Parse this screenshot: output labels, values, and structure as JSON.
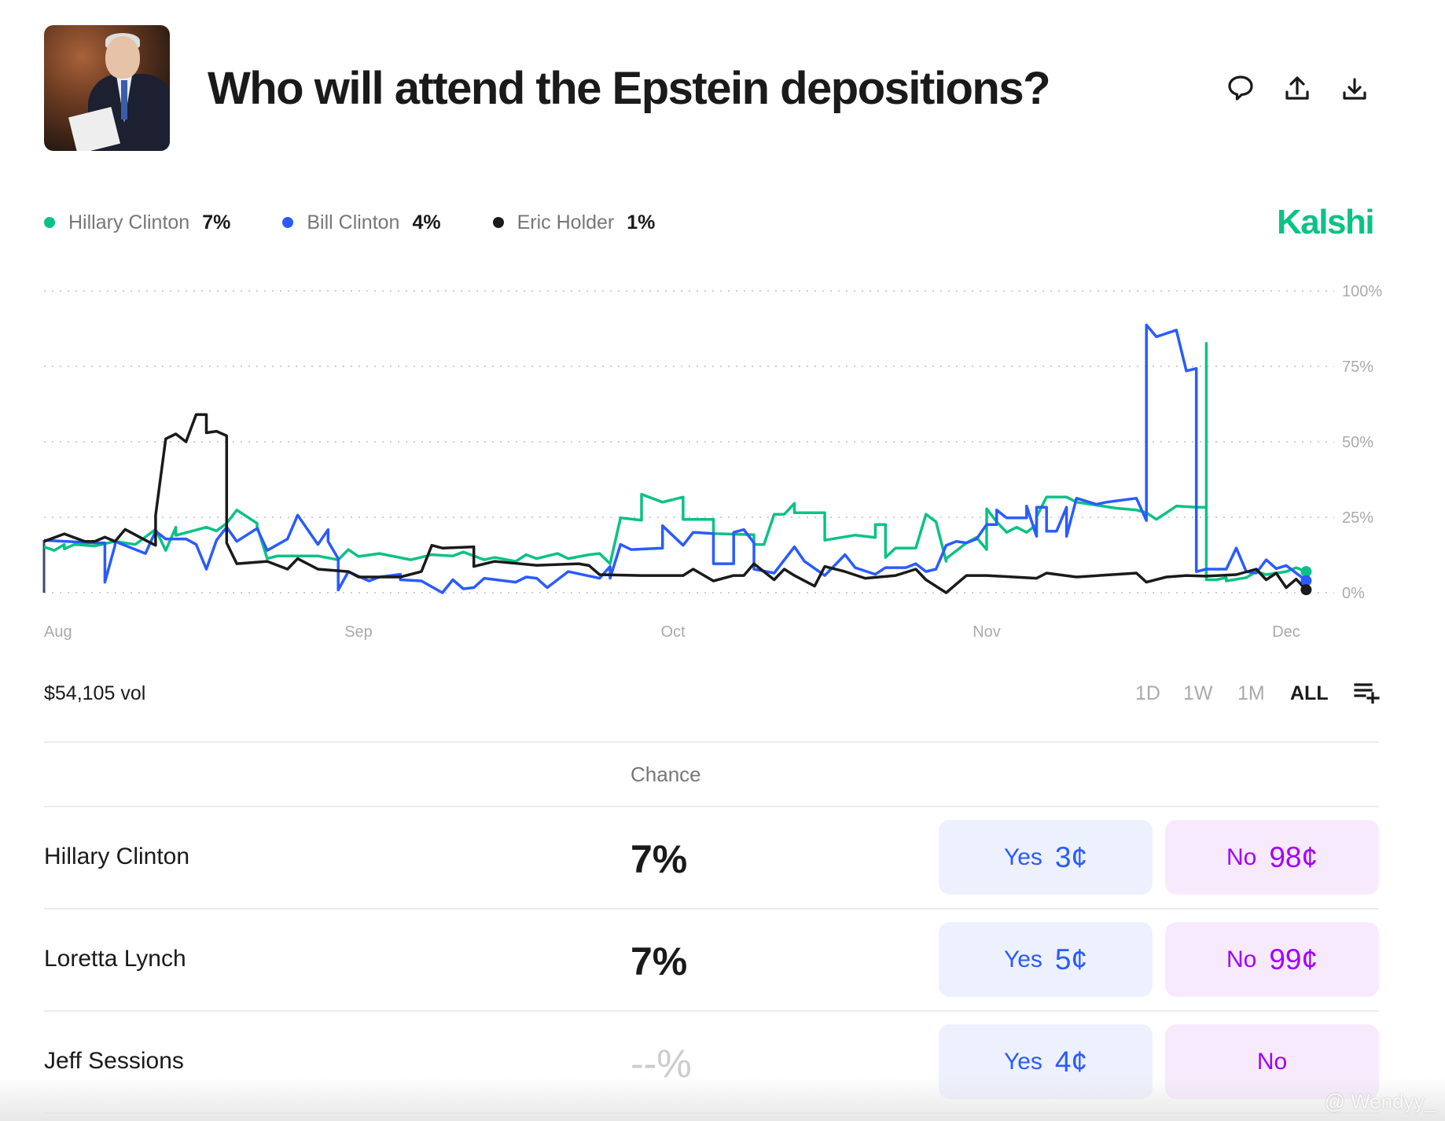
{
  "header": {
    "title": "Who will attend the Epstein depositions?",
    "icons": [
      "comment-icon",
      "share-icon",
      "download-icon"
    ]
  },
  "brand": "Kalshi",
  "legend": [
    {
      "name": "Hillary Clinton",
      "value": "7%",
      "color": "#0ac285"
    },
    {
      "name": "Bill Clinton",
      "value": "4%",
      "color": "#2a5bff"
    },
    {
      "name": "Eric Holder",
      "value": "1%",
      "color": "#1a1a1a"
    }
  ],
  "chart_data": {
    "type": "line",
    "xlabel": "",
    "ylabel": "",
    "x_ticks": [
      "Aug",
      "Sep",
      "Oct",
      "Nov",
      "Dec"
    ],
    "y_ticks": [
      "100%",
      "75%",
      "50%",
      "25%",
      "0%"
    ],
    "ylim": [
      0,
      100
    ],
    "grid": true,
    "legend_position": "top-left",
    "series": [
      {
        "name": "Hillary Clinton",
        "color": "#0ac285",
        "points": [
          [
            "Aug 1",
            15.2
          ],
          [
            "Aug 2",
            14
          ],
          [
            "Aug 3",
            16
          ],
          [
            "Aug 3",
            14.5
          ],
          [
            "Aug 4",
            16
          ],
          [
            "Aug 6",
            15.5
          ],
          [
            "Aug 8",
            17
          ],
          [
            "Aug 10",
            16
          ],
          [
            "Aug 12",
            21
          ],
          [
            "Aug 13",
            14
          ],
          [
            "Aug 14",
            21.7
          ],
          [
            "Aug 14",
            19
          ],
          [
            "Aug 17",
            21.7
          ],
          [
            "Aug 18",
            20.5
          ],
          [
            "Aug 19",
            23
          ],
          [
            "Aug 20",
            27.4
          ],
          [
            "Aug 22",
            23
          ],
          [
            "Aug 22",
            22
          ],
          [
            "Aug 23",
            11.3
          ],
          [
            "Aug 24",
            12.2
          ],
          [
            "Aug 28",
            12.2
          ],
          [
            "Aug 30",
            10.9
          ],
          [
            "Aug 31",
            14.3
          ],
          [
            "Sep 1",
            12
          ],
          [
            "Sep 3",
            13
          ],
          [
            "Sep 6",
            10.9
          ],
          [
            "Sep 8",
            12.6
          ],
          [
            "Sep 10",
            12.2
          ],
          [
            "Sep 11",
            13.5
          ],
          [
            "Sep 13",
            10.9
          ],
          [
            "Sep 14",
            11.7
          ],
          [
            "Sep 16",
            10.4
          ],
          [
            "Sep 17",
            12.6
          ],
          [
            "Sep 18",
            11.3
          ],
          [
            "Sep 20",
            13
          ],
          [
            "Sep 21",
            11.3
          ],
          [
            "Sep 23",
            12.6
          ],
          [
            "Sep 24",
            13
          ],
          [
            "Sep 25",
            9.6
          ],
          [
            "Sep 26",
            24.8
          ],
          [
            "Sep 28",
            24
          ],
          [
            "Sep 28",
            32.6
          ],
          [
            "Sep 30",
            30
          ],
          [
            "Oct 2",
            31.7
          ],
          [
            "Oct 2",
            24.3
          ],
          [
            "Oct 5",
            24.3
          ],
          [
            "Oct 5",
            19.6
          ],
          [
            "Oct 9",
            19.2
          ],
          [
            "Oct 9",
            16
          ],
          [
            "Oct 10",
            16
          ],
          [
            "Oct 11",
            26
          ],
          [
            "Oct 12",
            26
          ],
          [
            "Oct 13",
            29.6
          ],
          [
            "Oct 13",
            26.5
          ],
          [
            "Oct 16",
            26.5
          ],
          [
            "Oct 16",
            17.4
          ],
          [
            "Oct 19",
            19.1
          ],
          [
            "Oct 21",
            18.3
          ],
          [
            "Oct 21",
            22.6
          ],
          [
            "Oct 22",
            22.6
          ],
          [
            "Oct 22",
            11.7
          ],
          [
            "Oct 23",
            14.8
          ],
          [
            "Oct 25",
            14.8
          ],
          [
            "Oct 26",
            26
          ],
          [
            "Oct 27",
            23.5
          ],
          [
            "Oct 28",
            10.4
          ],
          [
            "Oct 28",
            11.3
          ],
          [
            "Oct 30",
            16.5
          ],
          [
            "Oct 31",
            18.3
          ],
          [
            "Nov 1",
            14.3
          ],
          [
            "Nov 1",
            27.8
          ],
          [
            "Nov 2",
            23.5
          ],
          [
            "Nov 3",
            20
          ],
          [
            "Nov 4",
            21.7
          ],
          [
            "Nov 5",
            20
          ],
          [
            "Nov 6",
            22.6
          ],
          [
            "Nov 6",
            25.2
          ],
          [
            "Nov 7",
            31.7
          ],
          [
            "Nov 9",
            31.7
          ],
          [
            "Nov 10",
            30
          ],
          [
            "Nov 12",
            29
          ],
          [
            "Nov 14",
            28
          ],
          [
            "Nov 16",
            27.4
          ],
          [
            "Nov 17",
            26.5
          ],
          [
            "Nov 18",
            24.3
          ],
          [
            "Nov 20",
            28.7
          ],
          [
            "Nov 22",
            28.3
          ],
          [
            "Nov 23",
            28.3
          ],
          [
            "Nov 23",
            82.6
          ],
          [
            "Nov 23",
            4.3
          ],
          [
            "Nov 24",
            4.3
          ],
          [
            "Nov 25",
            5
          ],
          [
            "Nov 25",
            3.9
          ],
          [
            "Nov 27",
            5
          ],
          [
            "Nov 28",
            7
          ],
          [
            "Nov 29",
            6
          ],
          [
            "Dec 1",
            7
          ],
          [
            "Dec 2",
            8.3
          ],
          [
            "Dec 3",
            7
          ]
        ]
      },
      {
        "name": "Bill Clinton",
        "color": "#2a5bff",
        "points": [
          [
            "Aug 1",
            17.4
          ],
          [
            "Aug 6",
            16.5
          ],
          [
            "Aug 7",
            16.5
          ],
          [
            "Aug 7",
            3.5
          ],
          [
            "Aug 8",
            15.7
          ],
          [
            "Aug 8",
            17
          ],
          [
            "Aug 11",
            13
          ],
          [
            "Aug 12",
            20.4
          ],
          [
            "Aug 13",
            17.8
          ],
          [
            "Aug 15",
            17.8
          ],
          [
            "Aug 16",
            16
          ],
          [
            "Aug 17",
            7.8
          ],
          [
            "Aug 18",
            17.4
          ],
          [
            "Aug 19",
            21.7
          ],
          [
            "Aug 20",
            17
          ],
          [
            "Aug 22",
            21.3
          ],
          [
            "Aug 23",
            14
          ],
          [
            "Aug 25",
            17.8
          ],
          [
            "Aug 26",
            25.7
          ],
          [
            "Aug 28",
            16
          ],
          [
            "Aug 29",
            20.9
          ],
          [
            "Aug 29",
            17
          ],
          [
            "Aug 30",
            11.3
          ],
          [
            "Aug 30",
            0.9
          ],
          [
            "Aug 31",
            7
          ],
          [
            "Sep 2",
            3.9
          ],
          [
            "Sep 3",
            5.2
          ],
          [
            "Sep 5",
            6.1
          ],
          [
            "Sep 5",
            4.3
          ],
          [
            "Sep 7",
            3.9
          ],
          [
            "Sep 9",
            0
          ],
          [
            "Sep 10",
            4.3
          ],
          [
            "Sep 11",
            1.3
          ],
          [
            "Sep 12",
            1.7
          ],
          [
            "Sep 13",
            4.8
          ],
          [
            "Sep 16",
            3.5
          ],
          [
            "Sep 17",
            5.2
          ],
          [
            "Sep 18",
            4.8
          ],
          [
            "Sep 19",
            1.7
          ],
          [
            "Sep 21",
            7
          ],
          [
            "Sep 24",
            4.8
          ],
          [
            "Sep 25",
            8.7
          ],
          [
            "Sep 25",
            4.8
          ],
          [
            "Sep 26",
            16
          ],
          [
            "Sep 27",
            14.3
          ],
          [
            "Sep 30",
            14.8
          ],
          [
            "Sep 30",
            20.4
          ],
          [
            "Sep 30",
            22.2
          ],
          [
            "Oct 2",
            15.7
          ],
          [
            "Oct 3",
            20
          ],
          [
            "Oct 5",
            19.6
          ],
          [
            "Oct 5",
            9.6
          ],
          [
            "Oct 7",
            9.6
          ],
          [
            "Oct 7",
            20
          ],
          [
            "Oct 8",
            20.9
          ],
          [
            "Oct 9",
            16.5
          ],
          [
            "Oct 9",
            7.8
          ],
          [
            "Oct 11",
            6.5
          ],
          [
            "Oct 13",
            15.2
          ],
          [
            "Oct 14",
            10.4
          ],
          [
            "Oct 16",
            5.7
          ],
          [
            "Oct 18",
            12.6
          ],
          [
            "Oct 19",
            8.3
          ],
          [
            "Oct 21",
            6.1
          ],
          [
            "Oct 22",
            8.3
          ],
          [
            "Oct 24",
            8.3
          ],
          [
            "Oct 25",
            9.6
          ],
          [
            "Oct 26",
            7
          ],
          [
            "Oct 27",
            7.8
          ],
          [
            "Oct 28",
            15.7
          ],
          [
            "Oct 29",
            17
          ],
          [
            "Oct 30",
            16.5
          ],
          [
            "Oct 31",
            17.8
          ],
          [
            "Nov 1",
            22.6
          ],
          [
            "Nov 2",
            22.6
          ],
          [
            "Nov 2",
            27.4
          ],
          [
            "Nov 3",
            24.8
          ],
          [
            "Nov 5",
            24.8
          ],
          [
            "Nov 5",
            28.7
          ],
          [
            "Nov 6",
            18.7
          ],
          [
            "Nov 6",
            28.3
          ],
          [
            "Nov 7",
            28.3
          ],
          [
            "Nov 7",
            20.4
          ],
          [
            "Nov 8",
            20.4
          ],
          [
            "Nov 9",
            28.3
          ],
          [
            "Nov 9",
            18.7
          ],
          [
            "Nov 10",
            31.3
          ],
          [
            "Nov 12",
            29.3
          ],
          [
            "Nov 13",
            30
          ],
          [
            "Nov 16",
            31.3
          ],
          [
            "Nov 17",
            23.9
          ],
          [
            "Nov 17",
            88.7
          ],
          [
            "Nov 18",
            84.8
          ],
          [
            "Nov 20",
            87
          ],
          [
            "Nov 21",
            73.5
          ],
          [
            "Nov 22",
            74.3
          ],
          [
            "Nov 22",
            7
          ],
          [
            "Nov 23",
            7.8
          ],
          [
            "Nov 25",
            7.8
          ],
          [
            "Nov 26",
            14.8
          ],
          [
            "Nov 27",
            7
          ],
          [
            "Nov 28",
            6.5
          ],
          [
            "Nov 29",
            10.9
          ],
          [
            "Nov 30",
            8
          ],
          [
            "Dec 1",
            9
          ],
          [
            "Dec 3",
            4
          ]
        ]
      },
      {
        "name": "Eric Holder",
        "color": "#1a1a1a",
        "points": [
          [
            "Aug 1",
            17
          ],
          [
            "Aug 3",
            19.5
          ],
          [
            "Aug 5",
            17
          ],
          [
            "Aug 6",
            17
          ],
          [
            "Aug 7",
            18.4
          ],
          [
            "Aug 8",
            17
          ],
          [
            "Aug 9",
            21
          ],
          [
            "Aug 11",
            17.4
          ],
          [
            "Aug 12",
            15.7
          ],
          [
            "Aug 12",
            25.6
          ],
          [
            "Aug 13",
            51
          ],
          [
            "Aug 14",
            52.6
          ],
          [
            "Aug 15",
            50
          ],
          [
            "Aug 16",
            59
          ],
          [
            "Aug 17",
            59
          ],
          [
            "Aug 17",
            53
          ],
          [
            "Aug 18",
            53.5
          ],
          [
            "Aug 19",
            52
          ],
          [
            "Aug 19",
            16.5
          ],
          [
            "Aug 20",
            9.6
          ],
          [
            "Aug 23",
            10.4
          ],
          [
            "Aug 25",
            7.8
          ],
          [
            "Aug 26",
            11.3
          ],
          [
            "Aug 28",
            7.8
          ],
          [
            "Aug 31",
            7
          ],
          [
            "Sep 1",
            5.2
          ],
          [
            "Sep 5",
            5.2
          ],
          [
            "Sep 7",
            7
          ],
          [
            "Sep 8",
            15.7
          ],
          [
            "Sep 9",
            14.8
          ],
          [
            "Sep 12",
            15.2
          ],
          [
            "Sep 12",
            8.7
          ],
          [
            "Sep 14",
            10.4
          ],
          [
            "Sep 18",
            9.1
          ],
          [
            "Sep 22",
            9.6
          ],
          [
            "Sep 23",
            9
          ],
          [
            "Sep 24",
            6
          ],
          [
            "Sep 28",
            5.7
          ],
          [
            "Oct 2",
            5.7
          ],
          [
            "Oct 3",
            7.8
          ],
          [
            "Oct 5",
            3.9
          ],
          [
            "Oct 7",
            5.7
          ],
          [
            "Oct 8",
            5.7
          ],
          [
            "Oct 9",
            9.6
          ],
          [
            "Oct 11",
            4.3
          ],
          [
            "Oct 12",
            7.8
          ],
          [
            "Oct 13",
            5.7
          ],
          [
            "Oct 15",
            2.2
          ],
          [
            "Oct 16",
            8.7
          ],
          [
            "Oct 18",
            7
          ],
          [
            "Oct 20",
            4.8
          ],
          [
            "Oct 23",
            5.7
          ],
          [
            "Oct 25",
            7.8
          ],
          [
            "Oct 26",
            4.3
          ],
          [
            "Oct 28",
            0
          ],
          [
            "Oct 30",
            5.7
          ],
          [
            "Nov 1",
            5.7
          ],
          [
            "Nov 6",
            4.8
          ],
          [
            "Nov 7",
            6.5
          ],
          [
            "Nov 10",
            5.2
          ],
          [
            "Nov 16",
            6.5
          ],
          [
            "Nov 17",
            3.5
          ],
          [
            "Nov 19",
            5.2
          ],
          [
            "Nov 21",
            5.7
          ],
          [
            "Nov 23",
            5.5
          ],
          [
            "Nov 26",
            6
          ],
          [
            "Nov 28",
            7.8
          ],
          [
            "Nov 29",
            4.3
          ],
          [
            "Nov 30",
            6.5
          ],
          [
            "Dec 1",
            1.7
          ],
          [
            "Dec 2",
            4.5
          ],
          [
            "Dec 3",
            1
          ]
        ]
      }
    ]
  },
  "volume": "$54,105 vol",
  "ranges": [
    {
      "label": "1D",
      "active": false
    },
    {
      "label": "1W",
      "active": false
    },
    {
      "label": "1M",
      "active": false
    },
    {
      "label": "ALL",
      "active": true
    }
  ],
  "table": {
    "chance_header": "Chance",
    "rows": [
      {
        "name": "Hillary Clinton",
        "chance": "7%",
        "yes_label": "Yes",
        "yes_price": "3¢",
        "no_label": "No",
        "no_price": "98¢"
      },
      {
        "name": "Loretta Lynch",
        "chance": "7%",
        "yes_label": "Yes",
        "yes_price": "5¢",
        "no_label": "No",
        "no_price": "99¢"
      },
      {
        "name": "Jeff Sessions",
        "chance": "--%",
        "yes_label": "Yes",
        "yes_price": "4¢",
        "no_label": "No",
        "no_price": ""
      }
    ]
  },
  "watermark": "@ Wendyy_"
}
